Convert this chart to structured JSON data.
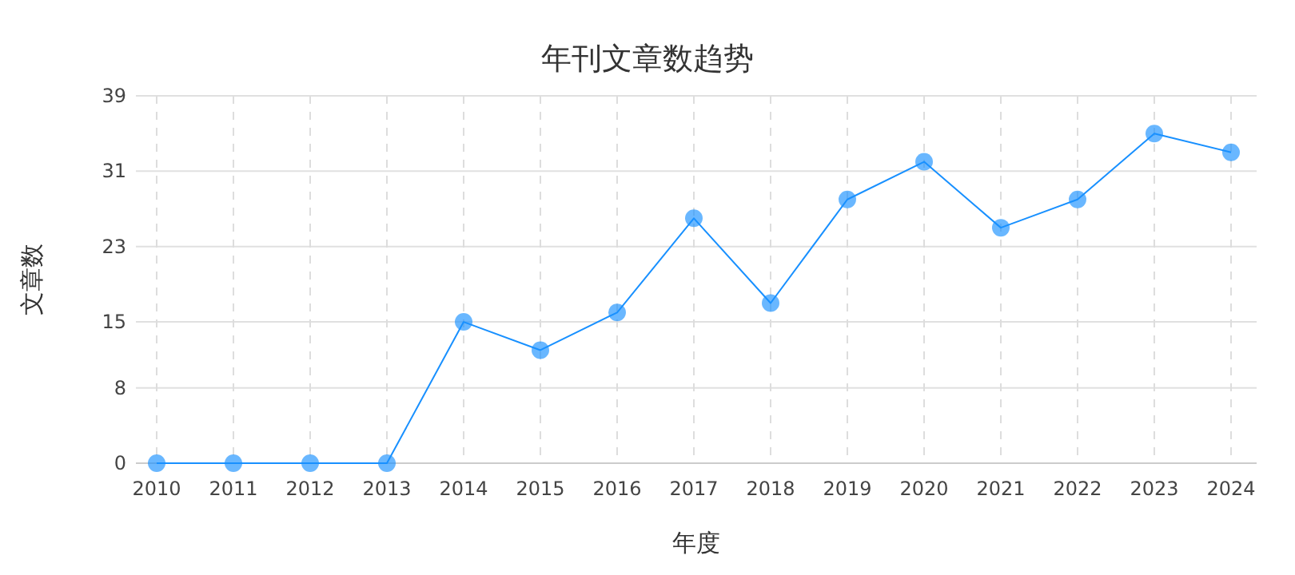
{
  "chart_data": {
    "type": "line",
    "title": "年刊文章数趋势",
    "xlabel": "年度",
    "ylabel": "文章数",
    "categories": [
      "2010",
      "2011",
      "2012",
      "2013",
      "2014",
      "2015",
      "2016",
      "2017",
      "2018",
      "2019",
      "2020",
      "2021",
      "2022",
      "2023",
      "2024"
    ],
    "series": [
      {
        "color": "#1890ff",
        "values": [
          0,
          0,
          0,
          0,
          15,
          12,
          16,
          26,
          17,
          28,
          32,
          25,
          28,
          35,
          33
        ]
      }
    ],
    "ylim": [
      0,
      39
    ],
    "yticks": [
      0,
      8,
      15,
      23,
      31,
      39
    ],
    "grid": true,
    "marker": "circle",
    "line_style": "solid"
  }
}
